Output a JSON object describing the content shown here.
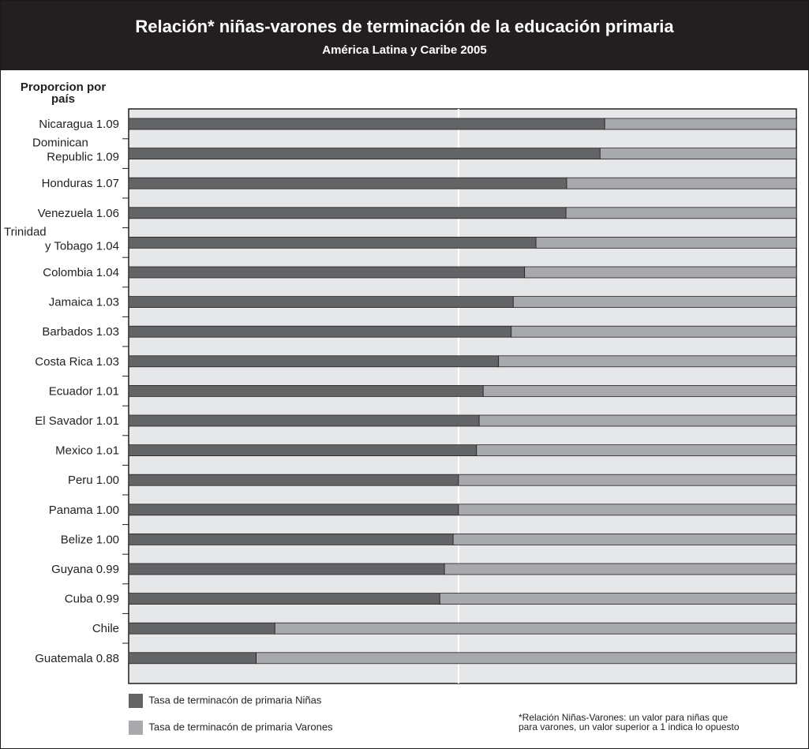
{
  "header": {
    "title": "Relación* niñas-varones de terminación de la educación primaria",
    "subtitle": "América Latina y Caribe 2005"
  },
  "chart_data": {
    "type": "bar",
    "orientation": "horizontal",
    "stacked": true,
    "title": "Relación* niñas-varones de terminación de la educación primaria",
    "subtitle": "América Latina y Caribe 2005",
    "ylabel": "Proporcion por país",
    "categories": [
      [
        "Nicaragua 1.09"
      ],
      [
        "Dominican",
        "Republic 1.09"
      ],
      [
        "Honduras 1.07"
      ],
      [
        "Venezuela 1.06"
      ],
      [
        "Trinidad",
        "y Tobago 1.04"
      ],
      [
        "Colombia 1.04"
      ],
      [
        "Jamaica 1.03"
      ],
      [
        "Barbados 1.03"
      ],
      [
        "Costa Rica 1.03"
      ],
      [
        "Ecuador 1.01"
      ],
      [
        "El Savador 1.01"
      ],
      [
        "Mexico 1.o1"
      ],
      [
        "Peru 1.00"
      ],
      [
        "Panama 1.00"
      ],
      [
        "Belize 1.00"
      ],
      [
        "Guyana 0.99"
      ],
      [
        "Cuba 0.99"
      ],
      [
        "Chile"
      ],
      [
        "Guatemala 0.88"
      ]
    ],
    "series": [
      {
        "name": "Tasa de terminacón de primaria Niñas",
        "color": "#636466",
        "values": [
          0.713,
          0.706,
          0.656,
          0.655,
          0.61,
          0.593,
          0.576,
          0.573,
          0.554,
          0.531,
          0.525,
          0.521,
          0.494,
          0.494,
          0.486,
          0.473,
          0.466,
          0.219,
          0.191
        ]
      },
      {
        "name": "Tasa de terminacón de primaria Varones",
        "color": "#a7a9ac",
        "values": [
          0.287,
          0.294,
          0.344,
          0.345,
          0.39,
          0.407,
          0.424,
          0.427,
          0.446,
          0.469,
          0.475,
          0.479,
          0.506,
          0.506,
          0.514,
          0.527,
          0.534,
          0.781,
          0.809
        ]
      }
    ],
    "xlim": [
      0,
      1
    ],
    "reference_line": 0.494,
    "grid": false,
    "legend_position": "bottom-left"
  },
  "legend": {
    "girls": "Tasa de terminacón de primaria Niñas",
    "boys": "Tasa de terminacón de primaria Varones"
  },
  "footnote": {
    "line1": "*Relación Niñas-Varones: un valor para niñas que",
    "line2": "para varones, un valor superior a 1 indica lo opuesto"
  },
  "colors": {
    "header_bg": "#231f20",
    "plot_bg": "#e6e7e8",
    "girls": "#636466",
    "boys": "#a7a9ac"
  }
}
